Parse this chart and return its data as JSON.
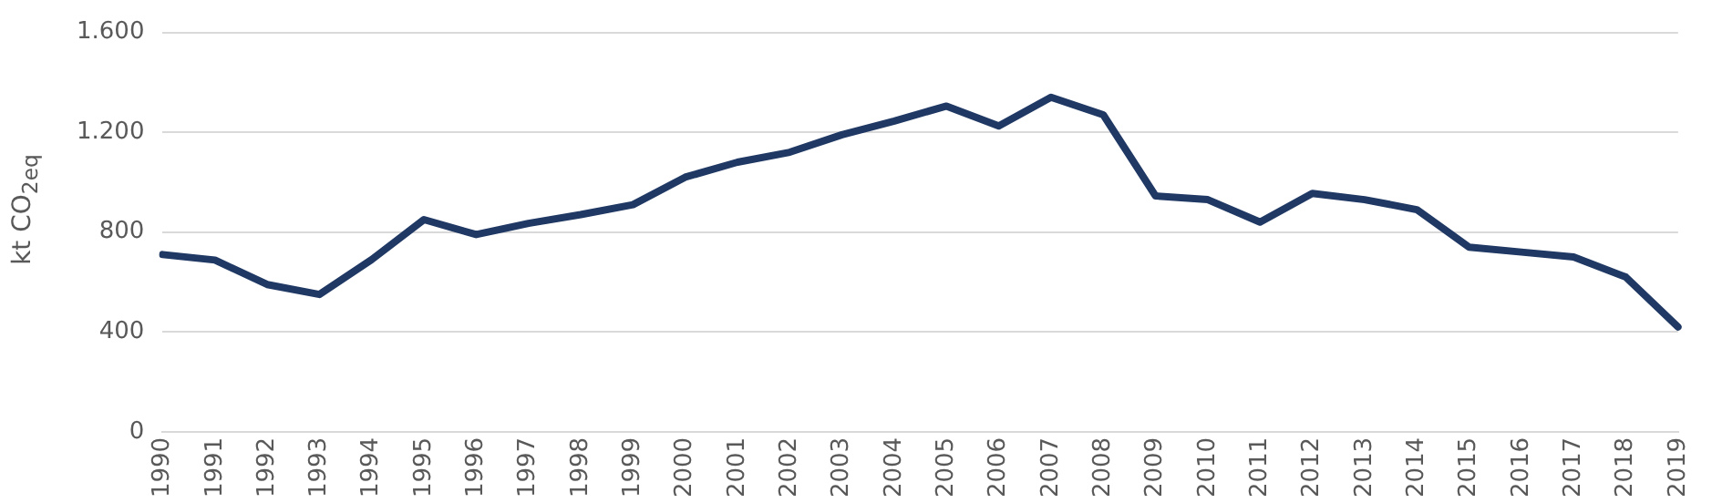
{
  "chart_data": {
    "type": "line",
    "ylabel": "kt CO$_{2eq}$",
    "categories": [
      "1990",
      "1991",
      "1992",
      "1993",
      "1994",
      "1995",
      "1996",
      "1997",
      "1998",
      "1999",
      "2000",
      "2001",
      "2002",
      "2003",
      "2004",
      "2005",
      "2006",
      "2007",
      "2008",
      "2009",
      "2010",
      "2011",
      "2012",
      "2013",
      "2014",
      "2015",
      "2016",
      "2017",
      "2018",
      "2019"
    ],
    "series": [
      {
        "color": "#203864",
        "values": [
          710,
          688,
          590,
          550,
          690,
          850,
          790,
          835,
          870,
          910,
          1020,
          1080,
          1120,
          1190,
          1245,
          1305,
          1225,
          1340,
          1270,
          945,
          930,
          840,
          955,
          930,
          890,
          740,
          720,
          700,
          620,
          420
        ]
      }
    ],
    "ylim": [
      0,
      1600
    ],
    "yticks": [
      {
        "value": 0,
        "label": "0"
      },
      {
        "value": 400,
        "label": "400"
      },
      {
        "value": 800,
        "label": "800"
      },
      {
        "value": 1200,
        "label": "1.200"
      },
      {
        "value": 1600,
        "label": "1.600"
      }
    ],
    "grid": "y",
    "legend": false,
    "marker": "none",
    "line_style": "solid"
  }
}
